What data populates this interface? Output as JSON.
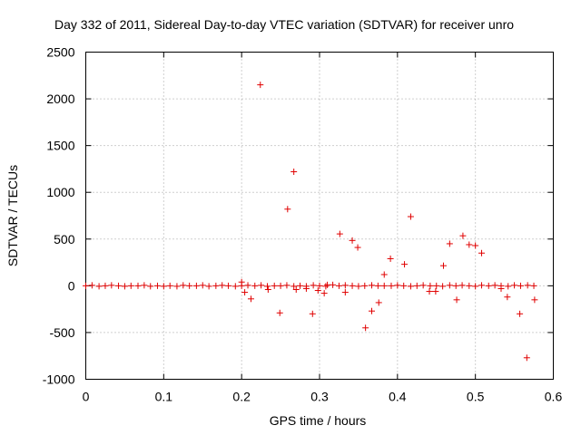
{
  "chart_data": {
    "type": "scatter",
    "title": "Day 332 of 2011, Sidereal Day-to-day VTEC variation (SDTVAR) for receiver unro",
    "xlabel": "GPS time / hours",
    "ylabel": "SDTVAR / TECUs",
    "xlim": [
      0,
      0.6
    ],
    "ylim": [
      -1000,
      2500
    ],
    "xticks": [
      0,
      0.1,
      0.2,
      0.3,
      0.4,
      0.5,
      0.6
    ],
    "xtick_labels": [
      "0",
      "0.1",
      "0.2",
      "0.3",
      "0.4",
      "0.5",
      "0.6"
    ],
    "yticks": [
      -1000,
      -500,
      0,
      500,
      1000,
      1500,
      2000,
      2500
    ],
    "ytick_labels": [
      "-1000",
      "-500",
      "0",
      "500",
      "1000",
      "1500",
      "2000",
      "2500"
    ],
    "grid": true,
    "marker": "+",
    "color": "#e00000",
    "series": [
      {
        "name": "SDTVAR",
        "x": [
          0.0,
          0.008,
          0.017,
          0.025,
          0.033,
          0.042,
          0.05,
          0.058,
          0.067,
          0.075,
          0.083,
          0.092,
          0.1,
          0.108,
          0.117,
          0.125,
          0.133,
          0.142,
          0.15,
          0.158,
          0.167,
          0.175,
          0.183,
          0.192,
          0.2,
          0.208,
          0.217,
          0.225,
          0.233,
          0.242,
          0.25,
          0.258,
          0.267,
          0.275,
          0.283,
          0.292,
          0.3,
          0.308,
          0.317,
          0.325,
          0.333,
          0.342,
          0.35,
          0.358,
          0.367,
          0.375,
          0.383,
          0.392,
          0.4,
          0.408,
          0.417,
          0.425,
          0.433,
          0.442,
          0.45,
          0.458,
          0.467,
          0.475,
          0.483,
          0.492,
          0.5,
          0.508,
          0.517,
          0.525,
          0.533,
          0.542,
          0.55,
          0.558,
          0.567,
          0.575,
          0.204,
          0.212,
          0.234,
          0.249,
          0.27,
          0.283,
          0.291,
          0.298,
          0.306,
          0.31,
          0.326,
          0.333,
          0.342,
          0.349,
          0.359,
          0.367,
          0.376,
          0.383,
          0.391,
          0.409,
          0.417,
          0.441,
          0.449,
          0.459,
          0.467,
          0.476,
          0.484,
          0.492,
          0.5,
          0.508,
          0.533,
          0.541,
          0.557,
          0.566,
          0.576,
          0.224,
          0.259,
          0.267,
          0.2
        ],
        "y": [
          0,
          5,
          -5,
          0,
          5,
          0,
          -5,
          0,
          0,
          5,
          -5,
          0,
          -5,
          0,
          -5,
          5,
          0,
          0,
          5,
          -5,
          0,
          5,
          0,
          -5,
          0,
          5,
          0,
          5,
          -5,
          0,
          0,
          5,
          -5,
          0,
          -5,
          5,
          0,
          -5,
          10,
          0,
          5,
          0,
          -5,
          0,
          5,
          0,
          0,
          0,
          5,
          0,
          -5,
          0,
          5,
          0,
          0,
          -5,
          5,
          0,
          5,
          0,
          -5,
          5,
          0,
          5,
          0,
          -5,
          5,
          0,
          5,
          0,
          -70,
          -140,
          -40,
          -290,
          -40,
          -30,
          -300,
          -50,
          -80,
          10,
          555,
          -70,
          485,
          410,
          -450,
          -270,
          -180,
          120,
          290,
          230,
          740,
          -60,
          -60,
          215,
          450,
          -150,
          535,
          440,
          430,
          350,
          -30,
          -120,
          -300,
          -770,
          -150,
          2150,
          820,
          1220,
          40
        ]
      }
    ]
  }
}
